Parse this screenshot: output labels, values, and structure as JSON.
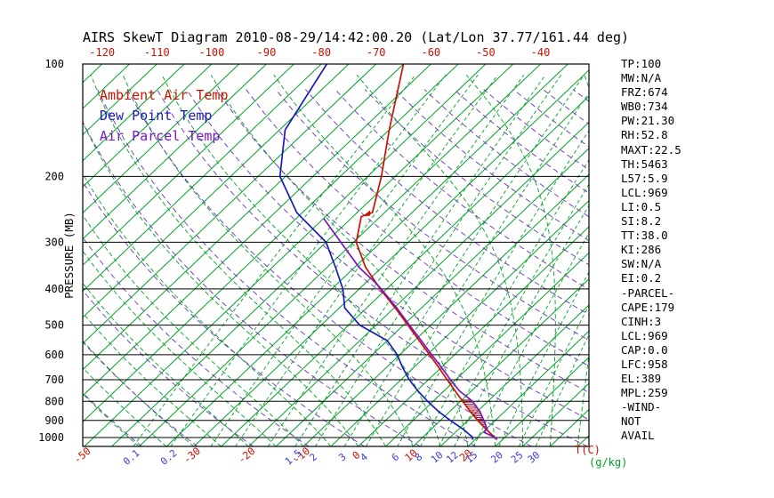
{
  "title": "AIRS SkewT Diagram 2010-08-29/14:42:00.20 (Lat/Lon 37.77/161.44 deg)",
  "legend": {
    "items": [
      {
        "label": "Ambient Air Temp",
        "color": "#cc1100"
      },
      {
        "label": "Dew Point Temp",
        "color": "#1a1ab8"
      },
      {
        "label": "Air Parcel Temp",
        "color": "#7a16c4"
      }
    ]
  },
  "stats_panel": {
    "lines": [
      "TP:100",
      "MW:N/A",
      "FRZ:674",
      "WB0:734",
      "PW:21.30",
      "RH:52.8",
      "MAXT:22.5",
      "TH:5463",
      "L57:5.9",
      "LCL:969",
      "LI:0.5",
      "SI:8.2",
      "TT:38.0",
      "KI:286",
      "SW:N/A",
      "EI:0.2",
      "-PARCEL-",
      "CAPE:179",
      "CINH:3",
      "LCL:969",
      "CAP:0.0",
      "LFC:958",
      "EL:389",
      "MPL:259",
      "-WIND-",
      "NOT",
      "AVAIL"
    ]
  },
  "chart_data": {
    "type": "line",
    "diagram": "skew-t-log-p",
    "title": "AIRS SkewT Diagram 2010-08-29/14:42:00.20 (Lat/Lon 37.77/161.44 deg)",
    "y_axis": {
      "label": "PRESSURE (MB)",
      "scale": "log",
      "ticks_mb": [
        100,
        200,
        300,
        400,
        500,
        600,
        700,
        800,
        900,
        1000
      ],
      "range_mb": [
        100,
        1057
      ]
    },
    "top_axis": {
      "ticks_c": [
        -120,
        -110,
        -100,
        -90,
        -80,
        -70,
        -60,
        -50,
        -40
      ],
      "color": "#cc1100"
    },
    "bottom_axis": {
      "temp_ticks_c": [
        -50,
        -30,
        -20,
        -10,
        0,
        10,
        20
      ],
      "temp_unit": "T(C)",
      "temp_color": "#cc1100",
      "mixing_ticks_gkg": [
        0.1,
        0.2,
        1.5,
        2,
        3,
        4,
        6,
        8,
        10,
        12,
        15,
        20,
        25,
        30
      ],
      "mixing_unit": "(g/kg)",
      "mixing_label_color": "#3b3bd0",
      "mixing_unit_color": "#00a226"
    },
    "background": {
      "isobars_mb": [
        100,
        200,
        300,
        400,
        500,
        600,
        700,
        800,
        900,
        1000
      ],
      "isotherms_c": {
        "min": -130,
        "max": 45,
        "step": 5,
        "color": "#00a226"
      },
      "mixing_ratio_lines_gkg": [
        0.1,
        0.2,
        0.4,
        0.6,
        1,
        1.5,
        2,
        3,
        4,
        6,
        8,
        10,
        12,
        15,
        20,
        25,
        30
      ],
      "moist_adiabats_c": {
        "min": -40,
        "max": 40,
        "step": 5,
        "color": "#00a226"
      },
      "dry_adiabats_theta_k": {
        "min": 230,
        "max": 450,
        "step": 10,
        "color": "#6633bb"
      }
    },
    "series": [
      {
        "name": "Ambient Air Temp",
        "color": "#cc1100",
        "points_mb_c": [
          [
            1013,
            24.0
          ],
          [
            1000,
            23.2
          ],
          [
            950,
            20.0
          ],
          [
            900,
            16.8
          ],
          [
            850,
            13.6
          ],
          [
            800,
            10.4
          ],
          [
            750,
            7.0
          ],
          [
            700,
            3.4
          ],
          [
            650,
            -0.4
          ],
          [
            600,
            -4.6
          ],
          [
            550,
            -9.2
          ],
          [
            500,
            -14.2
          ],
          [
            450,
            -19.8
          ],
          [
            400,
            -26.2
          ],
          [
            350,
            -33.0
          ],
          [
            300,
            -39.5
          ],
          [
            256,
            -43.5
          ],
          [
            250,
            -42.2
          ],
          [
            200,
            -47.5
          ],
          [
            150,
            -55.0
          ],
          [
            100,
            -65.0
          ]
        ]
      },
      {
        "name": "Dew Point Temp",
        "color": "#1a1ab8",
        "points_mb_c": [
          [
            1013,
            19.5
          ],
          [
            1000,
            19.2
          ],
          [
            950,
            15.8
          ],
          [
            900,
            11.8
          ],
          [
            850,
            7.8
          ],
          [
            800,
            4.0
          ],
          [
            750,
            0.2
          ],
          [
            700,
            -3.5
          ],
          [
            650,
            -7.0
          ],
          [
            600,
            -10.5
          ],
          [
            550,
            -15.0
          ],
          [
            500,
            -23.0
          ],
          [
            450,
            -29.0
          ],
          [
            400,
            -33.0
          ],
          [
            350,
            -38.5
          ],
          [
            300,
            -45.0
          ],
          [
            250,
            -56.0
          ],
          [
            200,
            -66.0
          ],
          [
            150,
            -74.0
          ],
          [
            100,
            -79.0
          ]
        ]
      },
      {
        "name": "Air Parcel Temp",
        "color": "#7a16c4",
        "points_mb_c": [
          [
            1013,
            24.0
          ],
          [
            1000,
            23.3
          ],
          [
            969,
            20.3
          ],
          [
            958,
            20.1
          ],
          [
            950,
            20.2
          ],
          [
            900,
            17.9
          ],
          [
            850,
            15.4
          ],
          [
            800,
            12.2
          ],
          [
            750,
            7.8
          ],
          [
            700,
            4.0
          ],
          [
            650,
            0.1
          ],
          [
            600,
            -4.2
          ],
          [
            550,
            -8.8
          ],
          [
            500,
            -13.9
          ],
          [
            450,
            -19.5
          ],
          [
            400,
            -26.0
          ],
          [
            389,
            -27.6
          ],
          [
            350,
            -34.2
          ],
          [
            300,
            -42.3
          ],
          [
            259,
            -50.0
          ]
        ]
      }
    ],
    "cape_hatch": {
      "between": [
        "Air Parcel Temp",
        "Ambient Air Temp"
      ],
      "p_bottom_mb": 954,
      "p_top_mb": 792,
      "color": "#b01535"
    },
    "tropopause_marker": {
      "p_mb": 256,
      "color": "#cc1100"
    }
  }
}
